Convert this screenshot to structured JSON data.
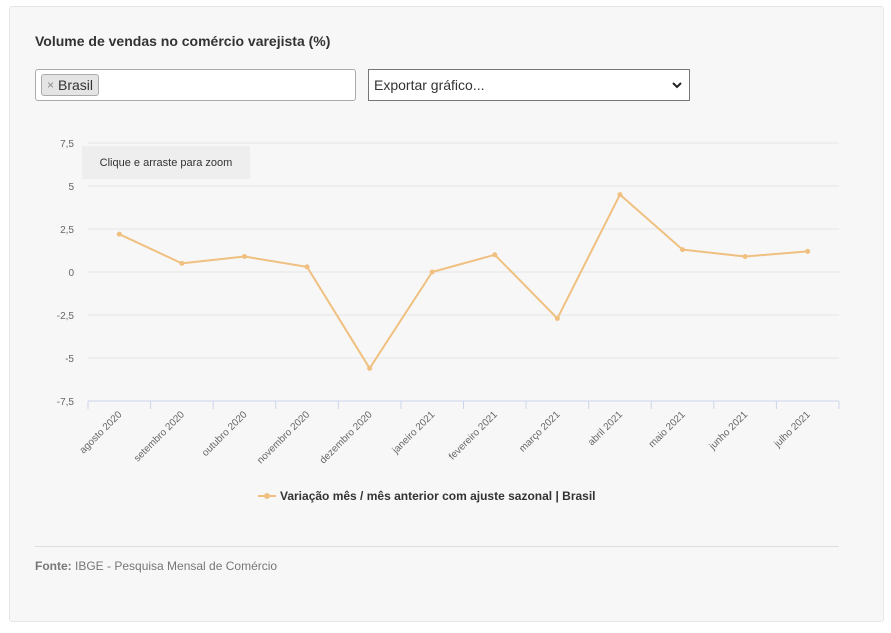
{
  "title": "Volume de vendas no comércio varejista (%)",
  "filter": {
    "chip_label": "Brasil",
    "remove_symbol": "×"
  },
  "export": {
    "selected_label": "Exportar gráfico..."
  },
  "zoom_hint": "Clique e arraste para zoom",
  "source": {
    "label": "Fonte:",
    "text": "IBGE - Pesquisa Mensal de Comércio"
  },
  "colors": {
    "series": "#f0c080",
    "grid": "#e6e6e6",
    "axis": "#ccd6eb"
  },
  "chart_data": {
    "type": "line",
    "title": "Volume de vendas no comércio varejista (%)",
    "categories": [
      "agosto 2020",
      "setembro 2020",
      "outubro 2020",
      "novembro 2020",
      "dezembro 2020",
      "janeiro 2021",
      "fevereiro 2021",
      "março 2021",
      "abril 2021",
      "maio 2021",
      "junho 2021",
      "julho 2021"
    ],
    "series": [
      {
        "name": "Variação mês / mês anterior com ajuste sazonal | Brasil",
        "values": [
          2.2,
          0.5,
          0.9,
          0.3,
          -5.6,
          0.0,
          1.0,
          -2.7,
          4.5,
          1.3,
          0.9,
          1.2
        ]
      }
    ],
    "yticks": [
      "7,5",
      "5",
      "2,5",
      "0",
      "-2,5",
      "-5",
      "-7,5"
    ],
    "ylim": [
      -7.5,
      7.5
    ],
    "grid": true,
    "legend_position": "bottom-center"
  }
}
